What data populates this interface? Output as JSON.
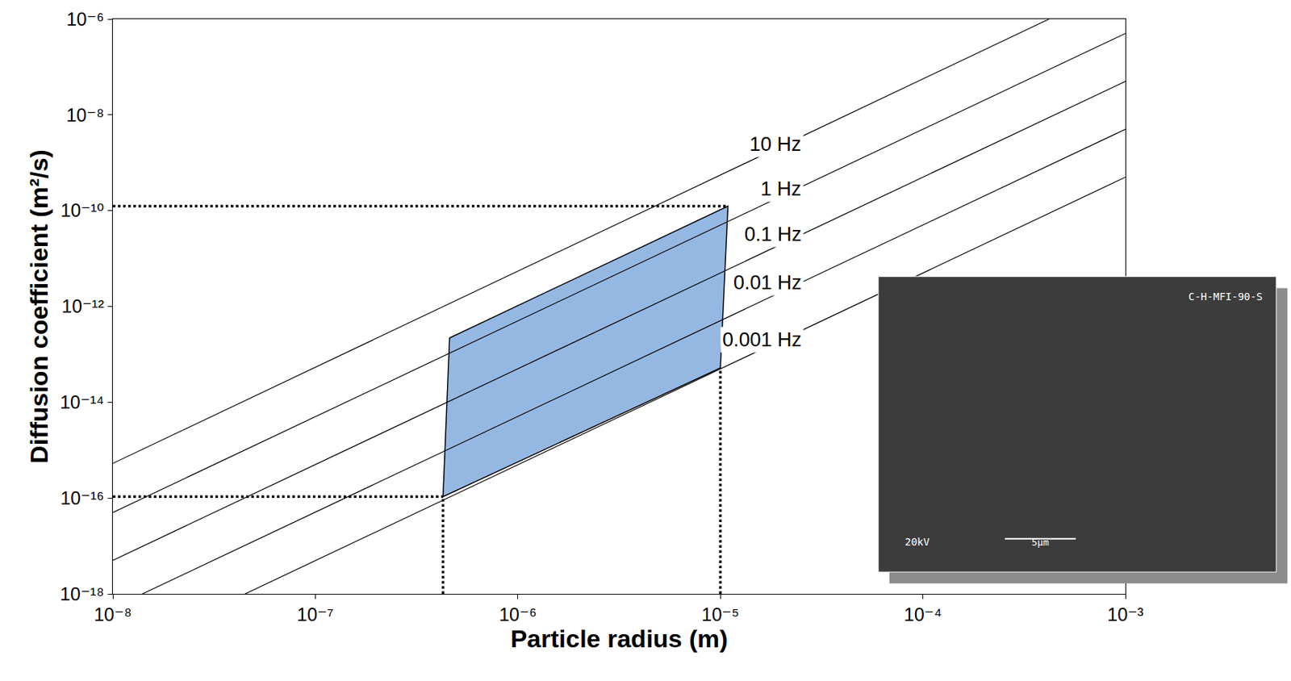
{
  "chart_data": {
    "type": "line",
    "xlabel": "Particle radius (m)",
    "ylabel": "Diffusion coefficient (m²/s)",
    "log": true,
    "grid": false,
    "xlim": [
      1e-08,
      0.001
    ],
    "ylim": [
      1e-18,
      1e-06
    ],
    "xticks": [
      {
        "value": 1e-08,
        "label": "10⁻⁸"
      },
      {
        "value": 1e-07,
        "label": "10⁻⁷"
      },
      {
        "value": 1e-06,
        "label": "10⁻⁶"
      },
      {
        "value": 1e-05,
        "label": "10⁻⁵"
      },
      {
        "value": 0.0001,
        "label": "10⁻⁴"
      },
      {
        "value": 0.001,
        "label": "10⁻³"
      }
    ],
    "yticks": [
      {
        "value": 1e-18,
        "label": "10⁻¹⁸"
      },
      {
        "value": 1e-16,
        "label": "10⁻¹⁶"
      },
      {
        "value": 1e-14,
        "label": "10⁻¹⁴"
      },
      {
        "value": 1e-12,
        "label": "10⁻¹²"
      },
      {
        "value": 1e-10,
        "label": "10⁻¹⁰"
      },
      {
        "value": 1e-08,
        "label": "10⁻⁸"
      },
      {
        "value": 1e-06,
        "label": "10⁻⁶"
      }
    ],
    "series": [
      {
        "type": "area",
        "color": "#95b8e3",
        "x": [
          4.27e-07,
          4.6e-07,
          1.09e-05,
          1e-05,
          4.27e-07
        ],
        "values": [
          1.07e-16,
          2.2e-13,
          1.24e-10,
          5.2e-14,
          1.07e-16
        ]
      },
      {
        "name": "10 Hz",
        "type": "line",
        "color": "#000000",
        "line_style": "solid",
        "x": [
          1e-08,
          0.00042
        ],
        "values": [
          5.3e-16,
          1e-06
        ]
      },
      {
        "name": "1 Hz",
        "type": "line",
        "color": "#000000",
        "line_style": "solid",
        "x": [
          1e-08,
          0.001
        ],
        "values": [
          5e-17,
          5e-07
        ]
      },
      {
        "name": "0.1 Hz",
        "type": "line",
        "color": "#000000",
        "line_style": "solid",
        "x": [
          1e-08,
          0.001
        ],
        "values": [
          5e-18,
          5e-08
        ]
      },
      {
        "name": "0.01 Hz",
        "type": "line",
        "color": "#000000",
        "line_style": "solid",
        "x": [
          1.4e-08,
          0.001
        ],
        "values": [
          1e-18,
          5e-09
        ]
      },
      {
        "name": "0.001 Hz",
        "type": "line",
        "color": "#000000",
        "line_style": "solid",
        "x": [
          4.5e-08,
          0.001
        ],
        "values": [
          1e-18,
          5e-10
        ]
      },
      {
        "type": "line",
        "color": "#000000",
        "line_style": "dotted",
        "x": [
          1e-08,
          1.09e-05
        ],
        "values": [
          1.24e-10,
          1.24e-10
        ]
      },
      {
        "type": "line",
        "color": "#000000",
        "line_style": "dotted",
        "x": [
          1e-08,
          4.27e-07
        ],
        "values": [
          1.07e-16,
          1.07e-16
        ]
      },
      {
        "type": "line",
        "color": "#000000",
        "line_style": "dotted",
        "x": [
          4.27e-07,
          4.27e-07
        ],
        "values": [
          1e-18,
          1.07e-16
        ]
      },
      {
        "type": "line",
        "color": "#000000",
        "line_style": "dotted",
        "x": [
          1e-05,
          1e-05
        ],
        "values": [
          1e-18,
          5.2e-14
        ]
      }
    ],
    "inset": {
      "label": "C-H-MFI-90-S",
      "voltage": "20kV",
      "scale_bar": "5μm"
    }
  }
}
